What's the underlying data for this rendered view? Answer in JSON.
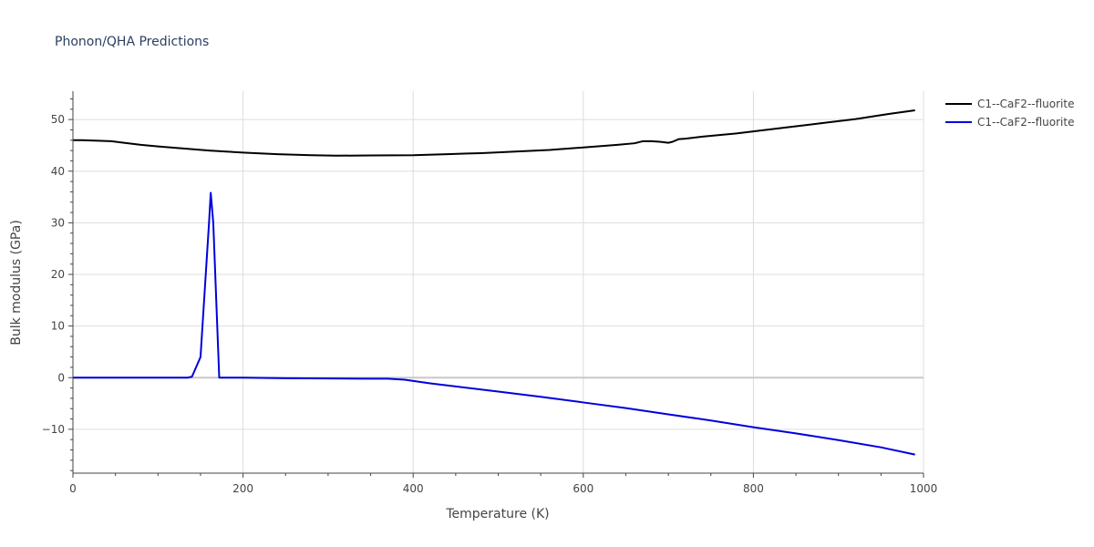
{
  "chart_data": {
    "type": "line",
    "title": "Phonon/QHA Predictions",
    "xlabel": "Temperature (K)",
    "ylabel": "Bulk modulus (GPa)",
    "xlim": [
      0,
      1000
    ],
    "ylim": [
      -18.5,
      55.5
    ],
    "xticks": [
      0,
      200,
      400,
      600,
      800,
      1000
    ],
    "yticks": [
      -10,
      0,
      10,
      20,
      30,
      40,
      50
    ],
    "ytick_labels": [
      "−10",
      "0",
      "10",
      "20",
      "30",
      "40",
      "50"
    ],
    "grid": true,
    "legend_position": "top-right",
    "series": [
      {
        "name": "C1--CaF2--fluorite",
        "color": "#000000",
        "x": [
          0,
          10,
          30,
          45,
          60,
          80,
          100,
          130,
          160,
          180,
          200,
          240,
          280,
          310,
          350,
          400,
          440,
          480,
          520,
          560,
          600,
          640,
          660,
          670,
          680,
          690,
          700,
          705,
          712,
          720,
          740,
          760,
          780,
          800,
          840,
          880,
          920,
          960,
          990
        ],
        "y": [
          46.0,
          46.0,
          45.9,
          45.8,
          45.5,
          45.1,
          44.8,
          44.4,
          44.0,
          43.8,
          43.6,
          43.3,
          43.1,
          43.0,
          43.05,
          43.1,
          43.3,
          43.5,
          43.8,
          44.1,
          44.6,
          45.1,
          45.4,
          45.8,
          45.8,
          45.7,
          45.5,
          45.7,
          46.2,
          46.3,
          46.7,
          47.0,
          47.3,
          47.7,
          48.5,
          49.3,
          50.1,
          51.1,
          51.8
        ]
      },
      {
        "name": "C1--CaF2--fluorite",
        "color": "#0000dd",
        "x": [
          0,
          20,
          40,
          60,
          80,
          100,
          120,
          135,
          140,
          150,
          160,
          162,
          165,
          172,
          180,
          200,
          250,
          300,
          340,
          370,
          390,
          420,
          450,
          500,
          550,
          600,
          650,
          700,
          750,
          800,
          850,
          900,
          950,
          990
        ],
        "y": [
          0,
          0,
          0,
          0,
          0,
          0,
          0,
          0,
          0.2,
          4.0,
          30.0,
          35.8,
          30.0,
          0,
          0,
          0,
          -0.1,
          -0.15,
          -0.2,
          -0.2,
          -0.4,
          -1.1,
          -1.7,
          -2.7,
          -3.7,
          -4.8,
          -5.9,
          -7.1,
          -8.3,
          -9.6,
          -10.8,
          -12.1,
          -13.5,
          -14.9
        ]
      }
    ]
  }
}
